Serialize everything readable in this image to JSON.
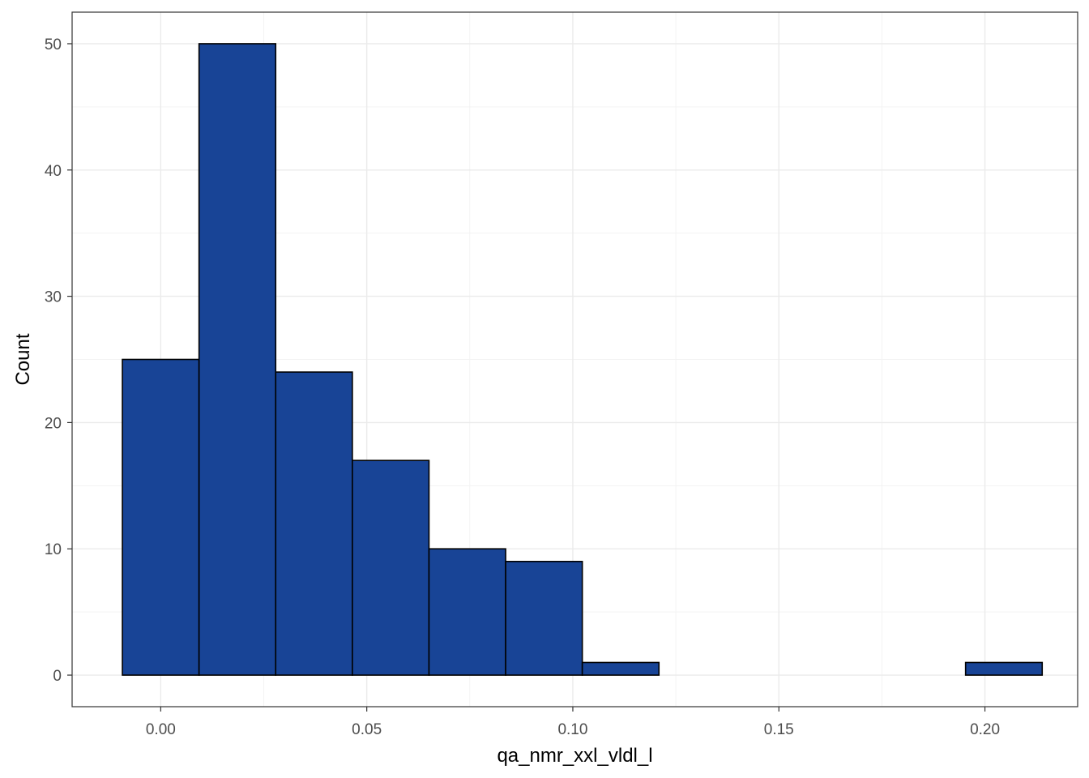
{
  "chart_data": {
    "type": "bar",
    "title": "",
    "xlabel": "qa_nmr_xxl_vldl_l",
    "ylabel": "Count",
    "xlim": [
      -0.0215,
      0.2225
    ],
    "ylim": [
      -2.5,
      52.5
    ],
    "grid": true,
    "bins": [
      {
        "x0": -0.0093,
        "x1": 0.0093,
        "count": 25
      },
      {
        "x0": 0.0093,
        "x1": 0.0279,
        "count": 50
      },
      {
        "x0": 0.0279,
        "x1": 0.0465,
        "count": 24
      },
      {
        "x0": 0.0465,
        "x1": 0.0651,
        "count": 17
      },
      {
        "x0": 0.0651,
        "x1": 0.0837,
        "count": 10
      },
      {
        "x0": 0.0837,
        "x1": 0.1023,
        "count": 9
      },
      {
        "x0": 0.1023,
        "x1": 0.1209,
        "count": 1
      },
      {
        "x0": 0.1209,
        "x1": 0.1395,
        "count": 0
      },
      {
        "x0": 0.1395,
        "x1": 0.1581,
        "count": 0
      },
      {
        "x0": 0.1581,
        "x1": 0.1767,
        "count": 0
      },
      {
        "x0": 0.1767,
        "x1": 0.1953,
        "count": 0
      },
      {
        "x0": 0.1953,
        "x1": 0.2139,
        "count": 1
      }
    ],
    "x_ticks": [
      {
        "value": 0.0,
        "label": "0.00"
      },
      {
        "value": 0.05,
        "label": "0.05"
      },
      {
        "value": 0.1,
        "label": "0.10"
      },
      {
        "value": 0.15,
        "label": "0.15"
      },
      {
        "value": 0.2,
        "label": "0.20"
      }
    ],
    "y_ticks": [
      {
        "value": 0,
        "label": "0"
      },
      {
        "value": 10,
        "label": "10"
      },
      {
        "value": 20,
        "label": "20"
      },
      {
        "value": 30,
        "label": "30"
      },
      {
        "value": 40,
        "label": "40"
      },
      {
        "value": 50,
        "label": "50"
      }
    ],
    "colors": {
      "bar_fill": "#184496",
      "bar_stroke": "#000000",
      "grid_major": "#ebebeb",
      "grid_minor": "#f3f3f3",
      "panel_border": "#333333",
      "tick_label": "#4d4d4d"
    }
  }
}
